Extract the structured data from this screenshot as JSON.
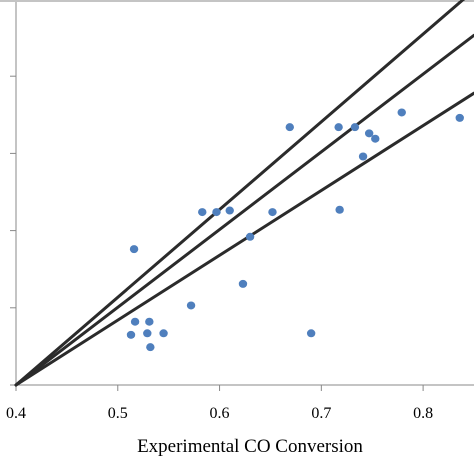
{
  "chart_data": {
    "type": "scatter",
    "title": "",
    "xlabel": "Experimental CO Conversion",
    "ylabel": "",
    "xlim": [
      0.4,
      0.85
    ],
    "ylim": [
      0.4,
      0.9
    ],
    "xticks": [
      {
        "value": 0.4,
        "label": "0.4"
      },
      {
        "value": 0.5,
        "label": "0.5"
      },
      {
        "value": 0.6,
        "label": "0.6"
      },
      {
        "value": 0.7,
        "label": "0.7"
      },
      {
        "value": 0.8,
        "label": "0.8"
      }
    ],
    "yticks": [
      0.4,
      0.5,
      0.6,
      0.7,
      0.8,
      0.9
    ],
    "yticks_labeled": false,
    "grid": false,
    "legend": "none",
    "colors": {
      "points": "#4f7fbd",
      "lines": "#2b2b2b",
      "axes": "#888888"
    },
    "series": [
      {
        "x": [
          0.516,
          0.517,
          0.513,
          0.531,
          0.529,
          0.532,
          0.545,
          0.572,
          0.583,
          0.597,
          0.61,
          0.63,
          0.623,
          0.652,
          0.669,
          0.717,
          0.718,
          0.69,
          0.733,
          0.741,
          0.747,
          0.753,
          0.779,
          0.836
        ],
        "y": [
          0.576,
          0.482,
          0.465,
          0.482,
          0.467,
          0.449,
          0.467,
          0.503,
          0.624,
          0.624,
          0.626,
          0.592,
          0.531,
          0.624,
          0.734,
          0.734,
          0.627,
          0.467,
          0.734,
          0.696,
          0.726,
          0.719,
          0.753,
          0.746
        ]
      }
    ],
    "reference_lines": [
      {
        "from": [
          0.4,
          0.4
        ],
        "to": [
          0.84,
          0.9
        ]
      },
      {
        "from": [
          0.4,
          0.4
        ],
        "to": [
          0.85,
          0.853
        ]
      },
      {
        "from": [
          0.4,
          0.4
        ],
        "to": [
          0.85,
          0.778
        ]
      }
    ]
  }
}
